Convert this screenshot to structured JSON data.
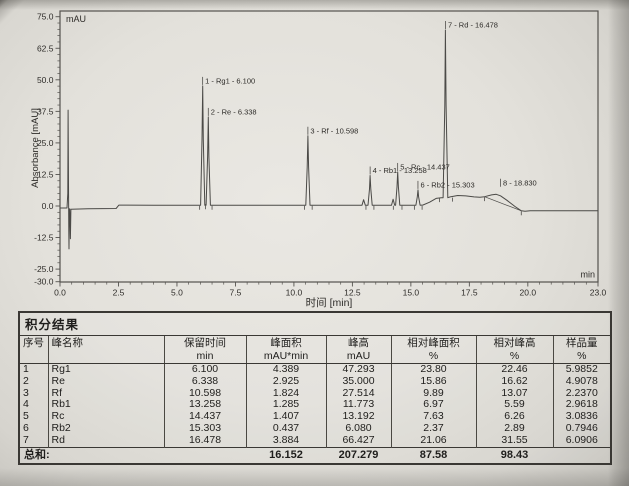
{
  "chart_data": {
    "type": "line",
    "title": "",
    "xlabel": "时间 [min]",
    "ylabel": "Absorbance [mAU]",
    "inner_y_unit": "mAU",
    "inner_x_unit": "min",
    "xlim": [
      0,
      23
    ],
    "ylim": [
      -30.4,
      77.4
    ],
    "x_ticks": [
      0.0,
      2.5,
      5.0,
      7.5,
      10.0,
      12.5,
      15.0,
      17.5,
      20.0,
      23.0
    ],
    "y_ticks": [
      75.0,
      62.5,
      50.0,
      37.5,
      25.0,
      12.5,
      0.0,
      -12.5,
      -25.0,
      -30.0
    ],
    "x_minor_step": 0.5,
    "y_minor_step": 2.5,
    "grid": false,
    "legend": false,
    "peaks": [
      {
        "n": 1,
        "name": "Rg1",
        "rt": 6.1,
        "height": 47.293,
        "area": 4.389,
        "rel_area_pct": 23.8,
        "rel_height_pct": 22.46,
        "sample_pct": 5.9852,
        "base": 0.3,
        "label": "1 - Rg1 - 6.100"
      },
      {
        "n": 2,
        "name": "Re",
        "rt": 6.338,
        "height": 35.0,
        "area": 2.925,
        "rel_area_pct": 15.86,
        "rel_height_pct": 16.62,
        "sample_pct": 4.9078,
        "base": 0.3,
        "label": "2 - Re - 6.338"
      },
      {
        "n": 3,
        "name": "Rf",
        "rt": 10.598,
        "height": 27.514,
        "area": 1.824,
        "rel_area_pct": 9.89,
        "rel_height_pct": 13.07,
        "sample_pct": 2.237,
        "base": 0.3,
        "label": "3 - Rf - 10.598"
      },
      {
        "n": 4,
        "name": "Rb1",
        "rt": 13.258,
        "height": 11.773,
        "area": 1.285,
        "rel_area_pct": 6.97,
        "rel_height_pct": 5.59,
        "sample_pct": 2.9618,
        "base": 0.3,
        "label": "4 - Rb1 - 13.258"
      },
      {
        "n": 5,
        "name": "Rc",
        "rt": 14.437,
        "height": 13.192,
        "area": 1.407,
        "rel_area_pct": 7.63,
        "rel_height_pct": 6.26,
        "sample_pct": 3.0836,
        "base": 0.3,
        "label": "5 - Rc - 14.437"
      },
      {
        "n": 6,
        "name": "Rb2",
        "rt": 15.303,
        "height": 6.08,
        "area": 0.437,
        "rel_area_pct": 2.37,
        "rel_height_pct": 2.89,
        "sample_pct": 0.7946,
        "base": 0.3,
        "label": "6 - Rb2 - 15.303"
      },
      {
        "n": 7,
        "name": "Rd",
        "rt": 16.478,
        "height": 66.427,
        "area": 3.884,
        "rel_area_pct": 21.06,
        "rel_height_pct": 31.55,
        "sample_pct": 6.0906,
        "base": 3.3,
        "label": "7 - Rd - 16.478"
      }
    ],
    "extra_labels": [
      {
        "text": "8 - 18.830",
        "t": 18.83,
        "v": 8.2
      }
    ],
    "unlabeled_bumps": [
      [
        12.98,
        2.2
      ],
      [
        14.24,
        2.4
      ]
    ],
    "pre_trace": [
      [
        0,
        -0.8
      ],
      [
        0.3,
        -0.8
      ],
      [
        0.335,
        5
      ],
      [
        0.348,
        38
      ],
      [
        0.362,
        8
      ],
      [
        0.375,
        -10
      ],
      [
        0.385,
        -17
      ],
      [
        0.398,
        -2
      ],
      [
        0.415,
        -1.1
      ],
      [
        0.432,
        -6
      ],
      [
        0.446,
        -13
      ],
      [
        0.468,
        -1.3
      ],
      [
        1.2,
        -1.1
      ],
      [
        2.4,
        -1.0
      ],
      [
        2.52,
        0.35
      ],
      [
        4.0,
        0.3
      ]
    ],
    "hump_rise": [
      [
        15.52,
        0.4
      ],
      [
        15.8,
        1.5
      ],
      [
        16.08,
        3.0
      ],
      [
        16.3,
        3.3
      ]
    ],
    "post_trace": [
      [
        16.68,
        3.6
      ],
      [
        17.0,
        4.15
      ],
      [
        17.35,
        4.0
      ],
      [
        17.7,
        3.6
      ],
      [
        17.95,
        3.45
      ],
      [
        18.15,
        3.7
      ],
      [
        18.45,
        4.4
      ],
      [
        18.65,
        4.62
      ],
      [
        18.83,
        4.05
      ],
      [
        19.1,
        2.3
      ],
      [
        19.45,
        -0.2
      ],
      [
        19.72,
        -1.9
      ],
      [
        19.88,
        -2.1
      ],
      [
        20.1,
        -1.9
      ],
      [
        23,
        -1.9
      ]
    ],
    "integration_ticks": [
      [
        5.97,
        0.3
      ],
      [
        6.22,
        0.5
      ],
      [
        6.5,
        0.3
      ],
      [
        10.45,
        0.3
      ],
      [
        10.78,
        0.3
      ],
      [
        13.08,
        0.3
      ],
      [
        13.42,
        0.3
      ],
      [
        14.25,
        0.3
      ],
      [
        14.62,
        0.3
      ],
      [
        15.15,
        0.3
      ],
      [
        15.48,
        0.3
      ],
      [
        16.22,
        3.3
      ],
      [
        16.78,
        3.5
      ],
      [
        18.15,
        3.7
      ],
      [
        19.72,
        -1.9
      ]
    ],
    "integration_line": [
      [
        18.15,
        3.7
      ],
      [
        19.72,
        -1.9
      ]
    ],
    "trace_color": "#4b4a47",
    "frame_color": "#54524e"
  },
  "table": {
    "title": "积分结果",
    "headers": [
      {
        "line1": "序号",
        "line2": ""
      },
      {
        "line1": "峰名称",
        "line2": ""
      },
      {
        "line1": "保留时间",
        "line2": "min"
      },
      {
        "line1": "峰面积",
        "line2": "mAU*min"
      },
      {
        "line1": "峰高",
        "line2": "mAU"
      },
      {
        "line1": "相对峰面积",
        "line2": "%"
      },
      {
        "line1": "相对峰高",
        "line2": "%"
      },
      {
        "line1": "样品量",
        "line2": "%"
      }
    ],
    "rows": [
      [
        "1",
        "Rg1",
        "6.100",
        "4.389",
        "47.293",
        "23.80",
        "22.46",
        "5.9852"
      ],
      [
        "2",
        "Re",
        "6.338",
        "2.925",
        "35.000",
        "15.86",
        "16.62",
        "4.9078"
      ],
      [
        "3",
        "Rf",
        "10.598",
        "1.824",
        "27.514",
        "9.89",
        "13.07",
        "2.2370"
      ],
      [
        "4",
        "Rb1",
        "13.258",
        "1.285",
        "11.773",
        "6.97",
        "5.59",
        "2.9618"
      ],
      [
        "5",
        "Rc",
        "14.437",
        "1.407",
        "13.192",
        "7.63",
        "6.26",
        "3.0836"
      ],
      [
        "6",
        "Rb2",
        "15.303",
        "0.437",
        "6.080",
        "2.37",
        "2.89",
        "0.7946"
      ],
      [
        "7",
        "Rd",
        "16.478",
        "3.884",
        "66.427",
        "21.06",
        "31.55",
        "6.0906"
      ]
    ],
    "total": {
      "label": "总和:",
      "values": [
        "",
        "16.152",
        "207.279",
        "87.58",
        "98.43",
        ""
      ]
    }
  }
}
